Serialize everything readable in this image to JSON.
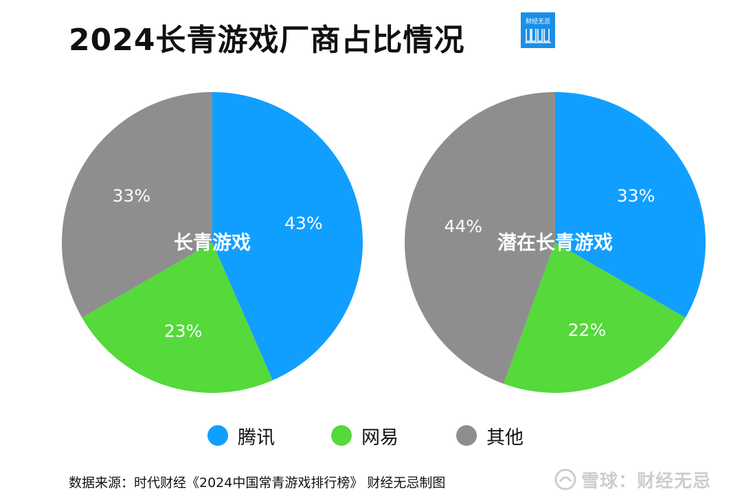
{
  "title": "2024长青游戏厂商占比情况",
  "brand": {
    "logo_text": "财经无忌"
  },
  "colors": {
    "tencent": "#119fff",
    "netease": "#55d93b",
    "other": "#8e8e8e"
  },
  "chart_data": [
    {
      "type": "pie",
      "center_label": "长青游戏",
      "slices": [
        {
          "name": "腾讯",
          "value": 43,
          "label": "43%"
        },
        {
          "name": "网易",
          "value": 23,
          "label": "23%"
        },
        {
          "name": "其他",
          "value": 33,
          "label": "33%"
        }
      ]
    },
    {
      "type": "pie",
      "center_label": "潜在长青游戏",
      "slices": [
        {
          "name": "腾讯",
          "value": 33,
          "label": "33%"
        },
        {
          "name": "网易",
          "value": 22,
          "label": "22%"
        },
        {
          "name": "其他",
          "value": 44,
          "label": "44%"
        }
      ]
    }
  ],
  "legend": [
    {
      "label": "腾讯",
      "color": "#119fff"
    },
    {
      "label": "网易",
      "color": "#55d93b"
    },
    {
      "label": "其他",
      "color": "#8e8e8e"
    }
  ],
  "source": "数据来源：时代财经《2024中国常青游戏排行榜》 财经无忌制图",
  "watermark": "雪球：财经无忌"
}
